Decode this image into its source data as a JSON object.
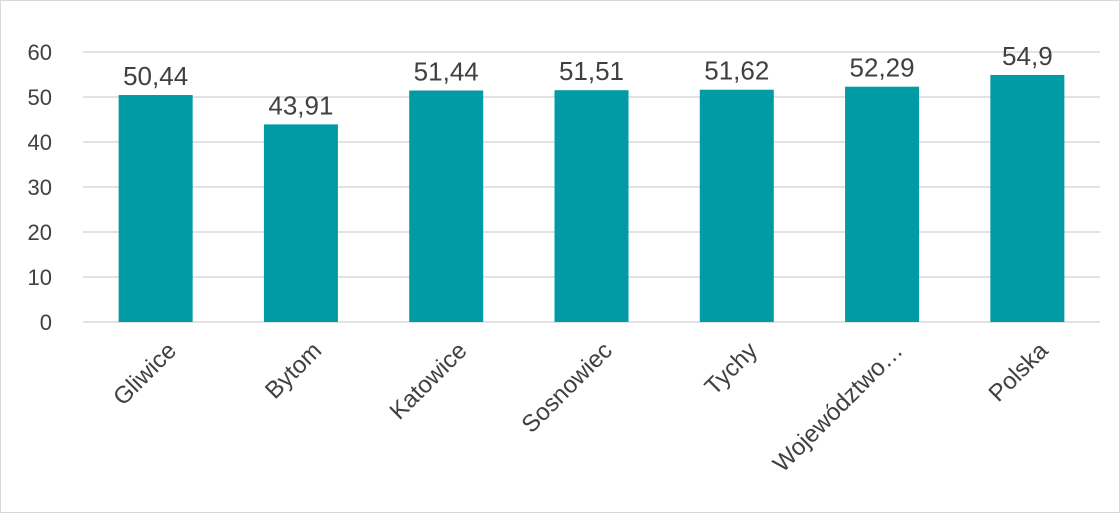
{
  "chart_data": {
    "type": "bar",
    "categories": [
      "Gliwice",
      "Bytom",
      "Katowice",
      "Sosnowiec",
      "Tychy",
      "Województwo…",
      "Polska"
    ],
    "values": [
      50.44,
      43.91,
      51.44,
      51.51,
      51.62,
      52.29,
      54.9
    ],
    "data_labels": [
      "50,44",
      "43,91",
      "51,44",
      "51,51",
      "51,62",
      "52,29",
      "54,9"
    ],
    "y_ticks": [
      "0",
      "10",
      "20",
      "30",
      "40",
      "50",
      "60"
    ],
    "ylim": [
      0,
      60
    ],
    "grid": true,
    "legend": "none",
    "bar_color": "#009BA4",
    "gridline_color": "#D9D9D9",
    "title": "",
    "xlabel": "",
    "ylabel": ""
  }
}
